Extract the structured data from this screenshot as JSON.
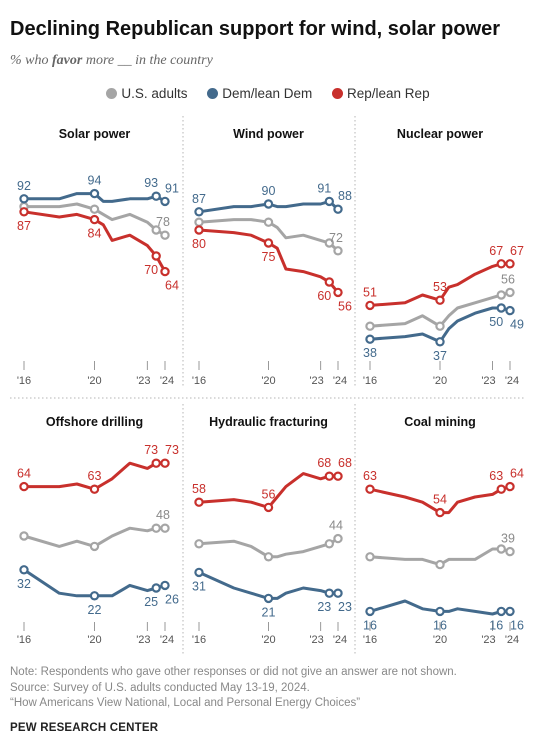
{
  "header": {
    "title": "Declining Republican support for wind, solar power",
    "subtitle_pre": "% who ",
    "subtitle_bold": "favor",
    "subtitle_post": " more __ in the country"
  },
  "legend": {
    "items": [
      {
        "label": "U.S. adults",
        "color": "#a5a5a5"
      },
      {
        "label": "Dem/lean Dem",
        "color": "#436a8c"
      },
      {
        "label": "Rep/lean Rep",
        "color": "#c8302c"
      }
    ]
  },
  "footer": {
    "note": "Note: Respondents who gave other responses or did not give an answer are not shown.",
    "source": "Source: Survey of U.S. adults conducted May 13-19, 2024.",
    "report": "“How Americans View National, Local and Personal Energy Choices”",
    "brand": "PEW RESEARCH CENTER"
  },
  "chart_data": [
    {
      "type": "line",
      "title": "Solar power",
      "x": [
        2016,
        2018,
        2019,
        2020,
        2020.5,
        2021,
        2022,
        2023,
        2023.5,
        2024
      ],
      "xticks": [
        "'16",
        "'20",
        "'23",
        "'24"
      ],
      "ylim": [
        0,
        100
      ],
      "series": [
        {
          "name": "U.S. adults",
          "values": [
            89,
            89,
            90,
            88,
            86,
            84,
            86,
            83,
            80,
            78
          ]
        },
        {
          "name": "Dem/lean Dem",
          "values": [
            92,
            92,
            94,
            94,
            91,
            91,
            92,
            92,
            93,
            91
          ]
        },
        {
          "name": "Rep/lean Rep",
          "values": [
            87,
            85,
            86,
            84,
            82,
            76,
            78,
            74,
            70,
            64
          ]
        }
      ],
      "labels": {
        "U.S. adults": {
          "start": null,
          "end": "78"
        },
        "Dem/lean Dem": {
          "start": "92",
          "mid": "94",
          "end_prev": "93",
          "end": "91"
        },
        "Rep/lean Rep": {
          "start": "87",
          "mid": "84",
          "end_prev": "70",
          "end": "64"
        }
      }
    },
    {
      "type": "line",
      "title": "Wind power",
      "x": [
        2016,
        2018,
        2019,
        2020,
        2020.5,
        2021,
        2022,
        2023,
        2023.5,
        2024
      ],
      "xticks": [
        "'16",
        "'20",
        "'23",
        "'24"
      ],
      "ylim": [
        0,
        100
      ],
      "series": [
        {
          "name": "U.S. adults",
          "values": [
            83,
            84,
            84,
            83,
            81,
            77,
            78,
            76,
            75,
            72
          ]
        },
        {
          "name": "Dem/lean Dem",
          "values": [
            87,
            89,
            89,
            90,
            89,
            89,
            90,
            90,
            91,
            88
          ]
        },
        {
          "name": "Rep/lean Rep",
          "values": [
            80,
            79,
            78,
            75,
            73,
            65,
            64,
            62,
            60,
            56
          ]
        }
      ],
      "labels": {
        "U.S. adults": {
          "start": null,
          "end": "72"
        },
        "Dem/lean Dem": {
          "start": "87",
          "mid": "90",
          "end_prev": "91",
          "end": "88"
        },
        "Rep/lean Rep": {
          "start": "80",
          "mid": "75",
          "end_prev": "60",
          "end": "56"
        }
      }
    },
    {
      "type": "line",
      "title": "Nuclear power",
      "x": [
        2016,
        2018,
        2019,
        2020,
        2020.5,
        2021,
        2022,
        2023,
        2023.5,
        2024
      ],
      "xticks": [
        "'16",
        "'20",
        "'23",
        "'24"
      ],
      "ylim": [
        0,
        100
      ],
      "series": [
        {
          "name": "U.S. adults",
          "values": [
            43,
            44,
            47,
            43,
            47,
            50,
            52,
            54,
            55,
            56
          ]
        },
        {
          "name": "Dem/lean Dem",
          "values": [
            38,
            39,
            40,
            37,
            42,
            45,
            48,
            50,
            50,
            49
          ]
        },
        {
          "name": "Rep/lean Rep",
          "values": [
            51,
            52,
            55,
            53,
            58,
            59,
            63,
            66,
            67,
            67
          ]
        }
      ],
      "labels": {
        "U.S. adults": {
          "start": null,
          "end": "56"
        },
        "Dem/lean Dem": {
          "start": "38",
          "mid": "37",
          "end_prev": "50",
          "end": "49"
        },
        "Rep/lean Rep": {
          "start": "51",
          "mid": "53",
          "end_prev": "67",
          "end": "67"
        }
      }
    },
    {
      "type": "line",
      "title": "Offshore drilling",
      "x": [
        2016,
        2018,
        2019,
        2020,
        2020.5,
        2021,
        2022,
        2023,
        2023.5,
        2024
      ],
      "xticks": [
        "'16",
        "'20",
        "'23",
        "'24"
      ],
      "ylim": [
        0,
        100
      ],
      "series": [
        {
          "name": "U.S. adults",
          "values": [
            45,
            41,
            43,
            41,
            43,
            45,
            48,
            47,
            48,
            48
          ]
        },
        {
          "name": "Dem/lean Dem",
          "values": [
            32,
            23,
            22,
            22,
            22,
            22,
            26,
            24,
            25,
            26
          ]
        },
        {
          "name": "Rep/lean Rep",
          "values": [
            64,
            64,
            65,
            63,
            65,
            67,
            73,
            71,
            73,
            73
          ]
        }
      ],
      "labels": {
        "U.S. adults": {
          "start": null,
          "end": "48"
        },
        "Dem/lean Dem": {
          "start": "32",
          "mid": "22",
          "end_prev": "25",
          "end": "26"
        },
        "Rep/lean Rep": {
          "start": "64",
          "mid": "63",
          "end_prev": "73",
          "end": "73"
        }
      }
    },
    {
      "type": "line",
      "title": "Hydraulic fracturing",
      "x": [
        2016,
        2018,
        2019,
        2020,
        2020.5,
        2021,
        2022,
        2023,
        2023.5,
        2024
      ],
      "xticks": [
        "'16",
        "'20",
        "'23",
        "'24"
      ],
      "ylim": [
        0,
        100
      ],
      "series": [
        {
          "name": "U.S. adults",
          "values": [
            42,
            43,
            41,
            37,
            37,
            38,
            39,
            41,
            42,
            44
          ]
        },
        {
          "name": "Dem/lean Dem",
          "values": [
            31,
            25,
            23,
            21,
            21,
            23,
            25,
            24,
            23,
            23
          ]
        },
        {
          "name": "Rep/lean Rep",
          "values": [
            58,
            59,
            58,
            56,
            60,
            64,
            69,
            67,
            68,
            68
          ]
        }
      ],
      "labels": {
        "U.S. adults": {
          "start": null,
          "end": "44"
        },
        "Dem/lean Dem": {
          "start": "31",
          "mid": "21",
          "end_prev": "23",
          "end": "23"
        },
        "Rep/lean Rep": {
          "start": "58",
          "mid": "56",
          "end_prev": "68",
          "end": "68"
        }
      }
    },
    {
      "type": "line",
      "title": "Coal mining",
      "x": [
        2016,
        2018,
        2019,
        2020,
        2020.5,
        2021,
        2022,
        2023,
        2023.5,
        2024
      ],
      "xticks": [
        "'16",
        "'20",
        "'23",
        "'24"
      ],
      "ylim": [
        0,
        100
      ],
      "series": [
        {
          "name": "U.S. adults",
          "values": [
            37,
            36,
            36,
            34,
            36,
            36,
            36,
            40,
            40,
            39
          ]
        },
        {
          "name": "Dem/lean Dem",
          "values": [
            16,
            20,
            17,
            16,
            16,
            17,
            16,
            15,
            16,
            16
          ]
        },
        {
          "name": "Rep/lean Rep",
          "values": [
            63,
            60,
            58,
            54,
            54,
            58,
            60,
            61,
            63,
            64
          ]
        }
      ],
      "labels": {
        "U.S. adults": {
          "start": null,
          "end": "39"
        },
        "Dem/lean Dem": {
          "start": "16",
          "mid": "16",
          "end_prev": "16",
          "end": "16"
        },
        "Rep/lean Rep": {
          "start": "63",
          "mid": "54",
          "end_prev": "63",
          "end": "64"
        }
      }
    }
  ]
}
